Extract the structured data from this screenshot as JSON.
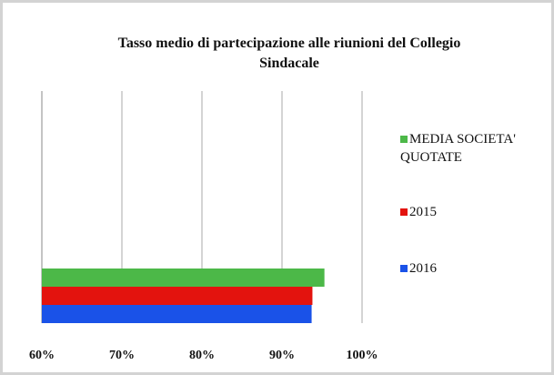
{
  "chart_data": {
    "type": "hbar",
    "title": "Tasso medio di partecipazione alle riunioni del Collegio Sindacale",
    "categories": [
      null
    ],
    "series": [
      {
        "name": "MEDIA SOCIETA' QUOTATE",
        "color": "#4cb848",
        "values": [
          95.3
        ]
      },
      {
        "name": "2015",
        "color": "#e3130e",
        "values": [
          93.8
        ]
      },
      {
        "name": "2016",
        "color": "#1a52e8",
        "values": [
          93.7
        ]
      }
    ],
    "xlim": [
      60,
      100
    ],
    "xticks": [
      {
        "value": 60,
        "label": "60%"
      },
      {
        "value": 70,
        "label": "70%"
      },
      {
        "value": 80,
        "label": "80%"
      },
      {
        "value": 90,
        "label": "90%"
      },
      {
        "value": 100,
        "label": "100%"
      }
    ],
    "grid": true,
    "legend": "right"
  }
}
